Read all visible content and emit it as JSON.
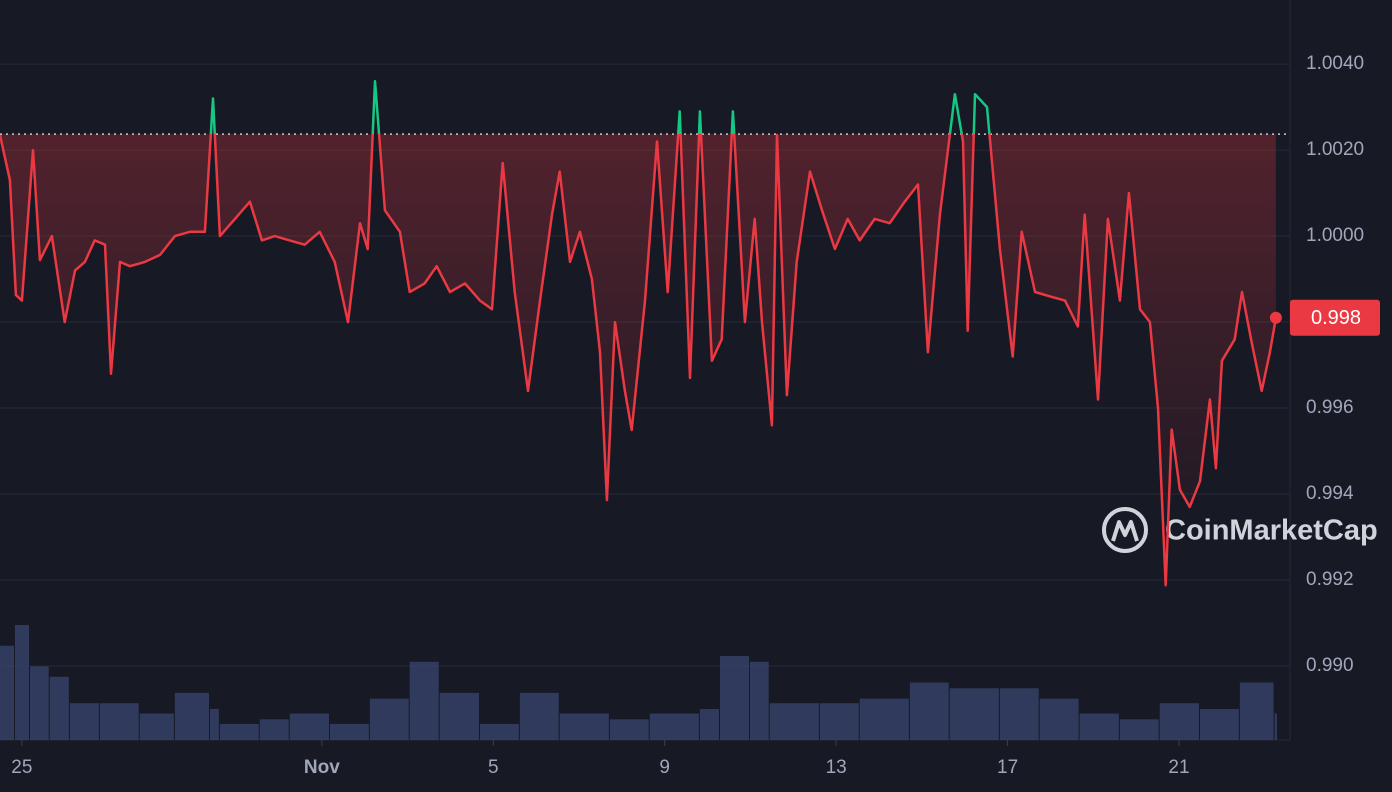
{
  "chart_data": {
    "type": "line",
    "x": [
      24.49,
      24.72,
      24.86,
      25.0,
      25.26,
      25.42,
      25.7,
      26.0,
      26.24,
      26.47,
      26.7,
      26.94,
      27.08,
      27.29,
      27.52,
      27.87,
      28.22,
      28.57,
      28.92,
      29.27,
      29.46,
      29.62,
      29.97,
      30.32,
      30.6,
      30.9,
      31.25,
      31.6,
      31.95,
      32.3,
      32.61,
      32.89,
      33.07,
      33.24,
      33.47,
      33.82,
      34.05,
      34.4,
      34.68,
      34.99,
      35.34,
      35.69,
      35.97,
      36.22,
      36.5,
      36.81,
      37.09,
      37.37,
      37.55,
      37.79,
      38.02,
      38.3,
      38.49,
      38.65,
      38.84,
      39.07,
      39.23,
      39.54,
      39.82,
      40.07,
      40.35,
      40.59,
      40.82,
      41.1,
      41.33,
      41.59,
      41.87,
      42.1,
      42.27,
      42.5,
      42.62,
      42.85,
      43.08,
      43.39,
      43.67,
      43.97,
      44.27,
      44.55,
      44.9,
      45.25,
      45.6,
      45.91,
      46.14,
      46.42,
      46.77,
      46.96,
      47.07,
      47.24,
      47.52,
      47.82,
      48.12,
      48.33,
      48.64,
      48.98,
      49.34,
      49.64,
      49.8,
      50.11,
      50.34,
      50.62,
      50.83,
      51.09,
      51.32,
      51.51,
      51.69,
      51.83,
      52.02,
      52.25,
      52.49,
      52.72,
      52.86,
      53.0,
      53.3,
      53.47,
      53.7,
      53.93,
      54.12,
      54.26
    ],
    "values": [
      1.00235,
      1.0013,
      0.99863,
      0.9985,
      1.002,
      0.99944,
      1.0,
      0.998,
      0.9992,
      0.9994,
      0.9999,
      0.9998,
      0.9968,
      0.9994,
      0.9993,
      0.9994,
      0.99956,
      1.0,
      1.0001,
      1.0001,
      1.0032,
      1.0,
      1.0004,
      1.0008,
      0.9999,
      1.0,
      0.9999,
      0.9998,
      1.0001,
      0.9994,
      0.998,
      1.0003,
      0.9997,
      1.0036,
      1.0006,
      1.0001,
      0.9987,
      0.9989,
      0.9993,
      0.9987,
      0.9989,
      0.9985,
      0.9983,
      1.0017,
      0.9987,
      0.9964,
      0.9985,
      1.0005,
      1.0015,
      0.9994,
      1.0001,
      0.999,
      0.9973,
      0.99386,
      0.998,
      0.9964,
      0.99549,
      0.9985,
      1.0022,
      0.9987,
      1.0029,
      0.9967,
      1.0029,
      0.9971,
      0.9976,
      1.0029,
      0.998,
      1.0004,
      0.998,
      0.9956,
      1.00235,
      0.9963,
      0.9994,
      1.0015,
      1.0006,
      0.9997,
      1.0004,
      0.9999,
      1.0004,
      1.0003,
      1.0008,
      1.0012,
      0.9973,
      1.0005,
      1.0033,
      1.0022,
      0.9978,
      1.0033,
      1.003,
      0.9997,
      0.9972,
      1.0001,
      0.9987,
      0.9986,
      0.9985,
      0.9979,
      1.0005,
      0.9962,
      1.0004,
      0.9985,
      1.001,
      0.9983,
      0.998,
      0.996,
      0.99188,
      0.9955,
      0.9941,
      0.9937,
      0.9943,
      0.9962,
      0.9946,
      0.9971,
      0.9976,
      0.9987,
      0.9975,
      0.9964,
      0.9973,
      0.9981
    ],
    "up_color": "#16c784",
    "down_color": "#ea3943",
    "baseline": 1.00237,
    "price_tag": {
      "value": 0.9981,
      "label": "0.998"
    },
    "xlim": [
      24.49,
      54.59
    ],
    "ylim": [
      0.98828,
      1.00549
    ],
    "xticks": [
      25,
      {
        "value": 32,
        "label": "Nov"
      },
      {
        "value": 36,
        "label": "5"
      },
      {
        "value": 40,
        "label": "9"
      },
      {
        "value": 44,
        "label": "13"
      },
      {
        "value": 48,
        "label": "17"
      },
      {
        "value": 52,
        "label": "21"
      }
    ],
    "yticks": [
      {
        "value": 1.004,
        "label": "1.0040"
      },
      {
        "value": 1.002,
        "label": "1.0020"
      },
      {
        "value": 1.0,
        "label": "1.0000"
      },
      0.998,
      0.996,
      0.994,
      0.992,
      {
        "value": 0.99,
        "label": "0.990"
      }
    ],
    "grid": true,
    "volume": {
      "x": [
        24.49,
        24.84,
        25.19,
        25.65,
        26.12,
        26.82,
        27.75,
        28.57,
        29.39,
        29.62,
        30.55,
        31.25,
        32.19,
        33.12,
        34.05,
        34.75,
        35.69,
        36.62,
        37.55,
        38.72,
        39.65,
        40.82,
        41.29,
        41.99,
        42.45,
        43.62,
        44.55,
        45.72,
        46.65,
        47.82,
        48.75,
        49.68,
        50.62,
        51.55,
        52.49,
        53.42,
        54.23
      ],
      "values": [
        82,
        100,
        64,
        55,
        32,
        32,
        23,
        41,
        27,
        14,
        18,
        23,
        14,
        36,
        68,
        41,
        14,
        41,
        23,
        18,
        23,
        27,
        73,
        68,
        32,
        32,
        36,
        50,
        45,
        45,
        36,
        23,
        18,
        32,
        27,
        50,
        23
      ],
      "ylim": [
        0,
        100
      ],
      "color": "#3a4570"
    },
    "watermark": "CoinMarketCap"
  }
}
